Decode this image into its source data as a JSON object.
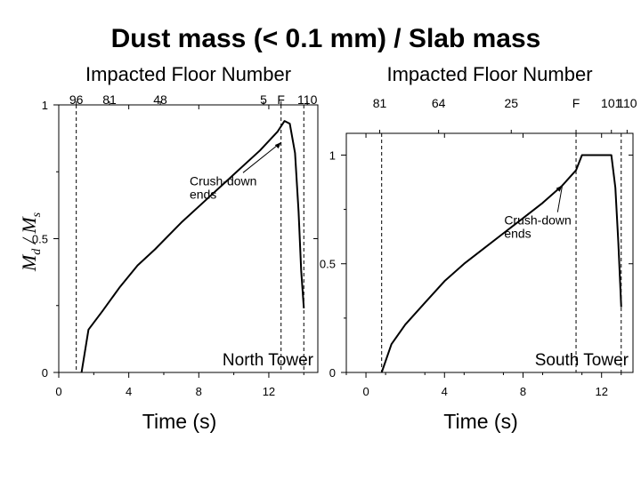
{
  "title": "Dust mass (< 0.1 mm) / Slab mass",
  "y_axis_label": "Md / Ms",
  "chart_data": [
    {
      "type": "line",
      "panel": "north",
      "label": "North Tower",
      "xlabel": "Time (s)",
      "top_axis_label": "Impacted Floor Number",
      "xlim": [
        0,
        14.8
      ],
      "ylim": [
        0,
        1
      ],
      "x_ticks": [
        0,
        4,
        8,
        12
      ],
      "y_ticks": [
        0,
        0.5,
        1
      ],
      "top_ticks": [
        {
          "x": 1.0,
          "label": "96"
        },
        {
          "x": 2.9,
          "label": "81"
        },
        {
          "x": 5.8,
          "label": "48"
        },
        {
          "x": 11.7,
          "label": "5"
        },
        {
          "x": 12.7,
          "label": "F"
        },
        {
          "x": 14.2,
          "label": "110"
        }
      ],
      "vlines": [
        1.0,
        12.7,
        14.0
      ],
      "annotation": {
        "text_lines": [
          "Crush-down",
          "ends"
        ],
        "point": [
          12.7,
          0.86
        ],
        "text_at": [
          9.0,
          0.7
        ]
      },
      "series": [
        {
          "x": [
            1.3,
            1.7,
            2.5,
            3.5,
            4.5,
            5.5,
            7,
            8.5,
            10,
            11.5,
            12.5,
            12.9,
            13.2,
            13.5,
            13.7,
            13.85,
            14.0
          ],
          "y": [
            0.0,
            0.16,
            0.23,
            0.32,
            0.4,
            0.46,
            0.56,
            0.65,
            0.74,
            0.83,
            0.9,
            0.94,
            0.93,
            0.82,
            0.6,
            0.38,
            0.24
          ]
        }
      ]
    },
    {
      "type": "line",
      "panel": "south",
      "label": "South Tower",
      "xlabel": "Time (s)",
      "top_axis_label": "Impacted Floor Number",
      "xlim": [
        -1.0,
        13.6
      ],
      "ylim": [
        0,
        1.1
      ],
      "x_ticks": [
        0,
        4,
        8,
        12
      ],
      "y_ticks": [
        0,
        0.5,
        1
      ],
      "top_ticks": [
        {
          "x": 0.7,
          "label": "81"
        },
        {
          "x": 3.7,
          "label": "64"
        },
        {
          "x": 7.4,
          "label": "25"
        },
        {
          "x": 10.7,
          "label": "F"
        },
        {
          "x": 12.5,
          "label": "101"
        },
        {
          "x": 13.3,
          "label": "110"
        }
      ],
      "vlines": [
        0.8,
        10.7,
        13.0
      ],
      "annotation": {
        "text_lines": [
          "Crush-down",
          "ends"
        ],
        "point": [
          10.0,
          0.86
        ],
        "text_at": [
          8.4,
          0.68
        ]
      },
      "series": [
        {
          "x": [
            0.8,
            1.3,
            2,
            3,
            4,
            5,
            6,
            7,
            8,
            9,
            10,
            10.7,
            11.0,
            12.0,
            12.5,
            12.7,
            12.85,
            13.0
          ],
          "y": [
            0.0,
            0.13,
            0.22,
            0.32,
            0.42,
            0.5,
            0.57,
            0.64,
            0.71,
            0.78,
            0.86,
            0.93,
            1.0,
            1.0,
            1.0,
            0.85,
            0.6,
            0.3
          ]
        }
      ]
    }
  ]
}
